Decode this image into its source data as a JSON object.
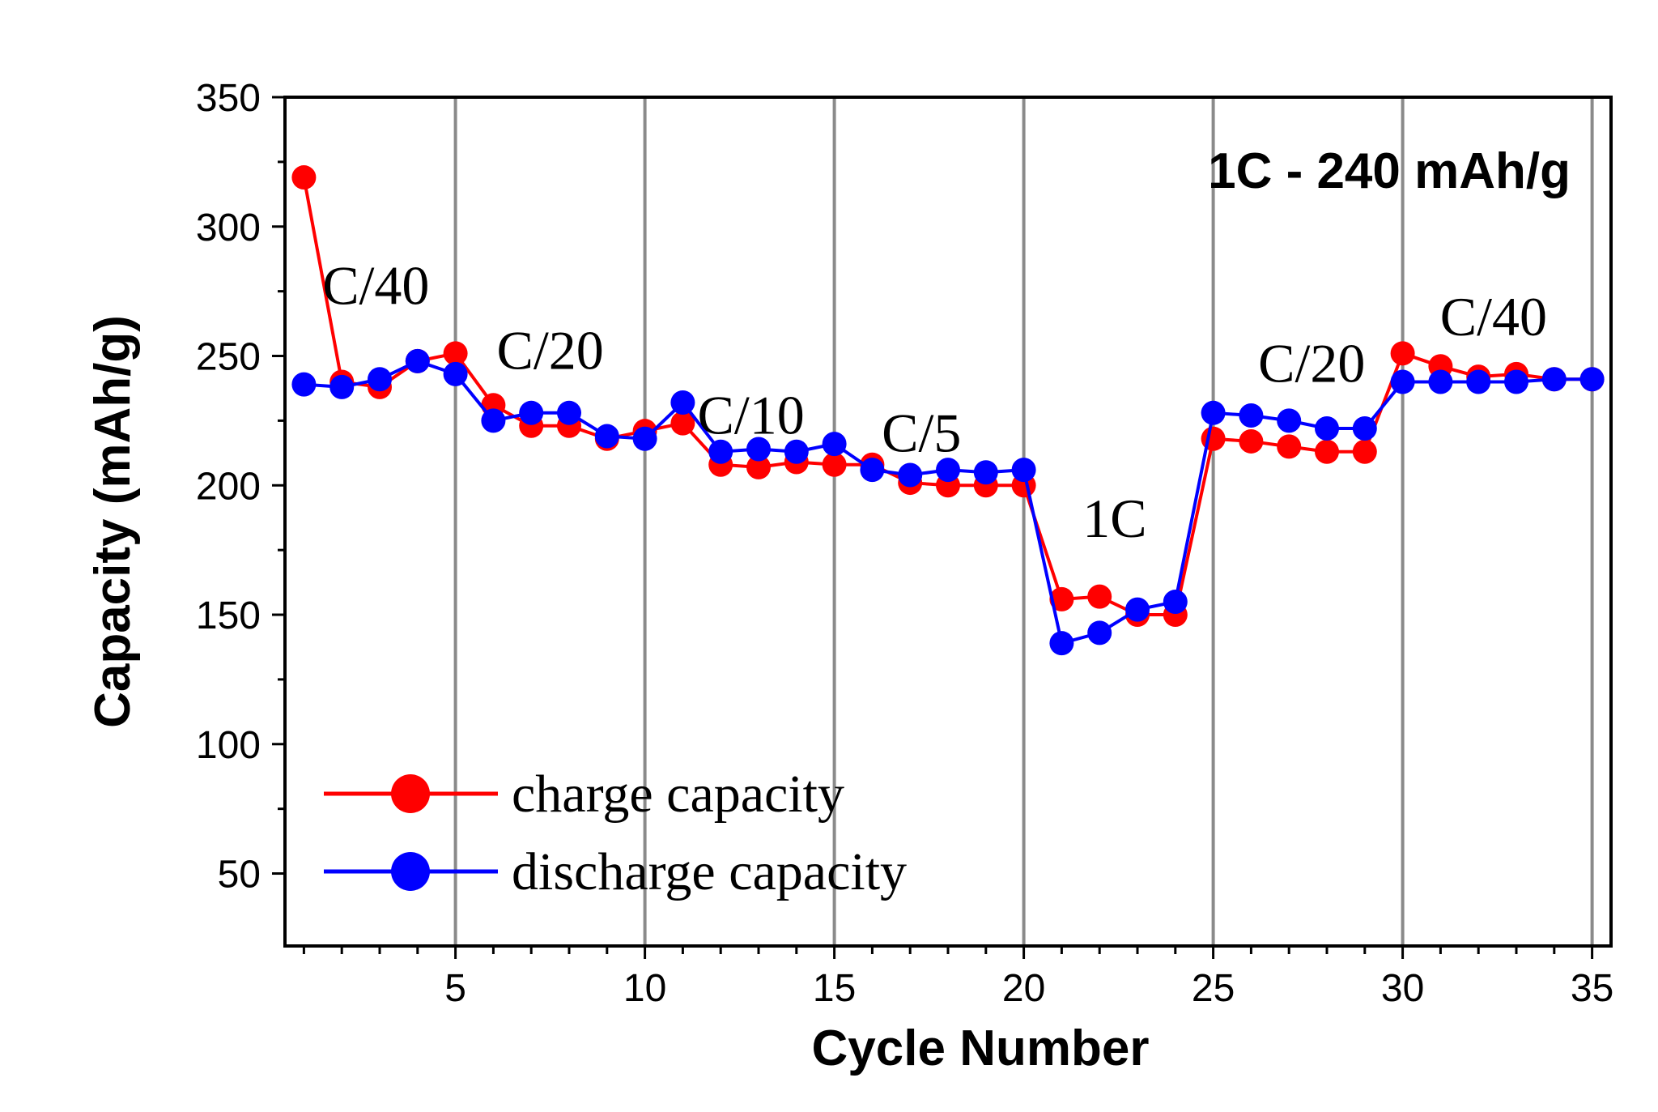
{
  "chart_data": {
    "type": "line",
    "title": "",
    "annotation_title": "1C - 240 mAh/g",
    "xlabel": "Cycle Number",
    "ylabel": "Capacity (mAh/g)",
    "xlim": [
      0.5,
      35.5
    ],
    "ylim": [
      22,
      350
    ],
    "xticks": [
      5,
      10,
      15,
      20,
      25,
      30,
      35
    ],
    "yticks": [
      50,
      100,
      150,
      200,
      250,
      300,
      350
    ],
    "vertical_gridlines_at": [
      5,
      10,
      15,
      20,
      25,
      30,
      35
    ],
    "legend_position": "bottom-left",
    "rate_labels": [
      {
        "text": "C/40",
        "x": 2.9,
        "y": 270
      },
      {
        "text": "C/20",
        "x": 7.5,
        "y": 245
      },
      {
        "text": "C/10",
        "x": 12.8,
        "y": 220
      },
      {
        "text": "C/5",
        "x": 17.3,
        "y": 213
      },
      {
        "text": "1C",
        "x": 22.4,
        "y": 180
      },
      {
        "text": "C/20",
        "x": 27.6,
        "y": 240
      },
      {
        "text": "C/40",
        "x": 32.4,
        "y": 258
      }
    ],
    "x": [
      1,
      2,
      3,
      4,
      5,
      6,
      7,
      8,
      9,
      10,
      11,
      12,
      13,
      14,
      15,
      16,
      17,
      18,
      19,
      20,
      21,
      22,
      23,
      24,
      25,
      26,
      27,
      28,
      29,
      30,
      31,
      32,
      33,
      34,
      35
    ],
    "series": [
      {
        "name": "charge capacity",
        "color": "#ff0000",
        "values": [
          319,
          240,
          238,
          248,
          251,
          231,
          223,
          223,
          218,
          221,
          224,
          208,
          207,
          209,
          208,
          208,
          201,
          200,
          200,
          200,
          156,
          157,
          150,
          150,
          218,
          217,
          215,
          213,
          213,
          251,
          246,
          242,
          243,
          241,
          241
        ]
      },
      {
        "name": "discharge capacity",
        "color": "#0000ff",
        "values": [
          239,
          238,
          241,
          248,
          243,
          225,
          228,
          228,
          219,
          218,
          232,
          213,
          214,
          213,
          216,
          206,
          204,
          206,
          205,
          206,
          139,
          143,
          152,
          155,
          228,
          227,
          225,
          222,
          222,
          240,
          240,
          240,
          240,
          241,
          241
        ]
      }
    ]
  }
}
